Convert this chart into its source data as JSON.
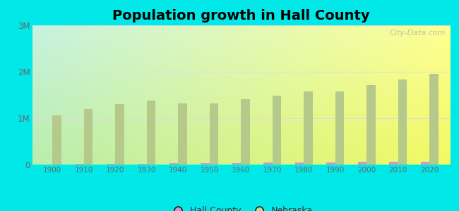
{
  "title": "Population growth in Hall County",
  "title_fontsize": 14,
  "title_fontweight": "bold",
  "years": [
    1900,
    1910,
    1920,
    1930,
    1940,
    1950,
    1960,
    1970,
    1980,
    1990,
    2000,
    2010,
    2020
  ],
  "nebraska": [
    1066300,
    1192214,
    1296372,
    1377963,
    1315834,
    1325510,
    1411330,
    1483791,
    1569825,
    1578385,
    1711263,
    1826341,
    1961504
  ],
  "hall_county": [
    7564,
    11061,
    15752,
    22648,
    26495,
    29234,
    35757,
    42851,
    47690,
    48925,
    53534,
    61353,
    67515
  ],
  "nebraska_color": "#b5c98a",
  "hall_county_color": "#cc99cc",
  "outer_bg": "#00e8e8",
  "ylim": [
    0,
    3000000
  ],
  "yticks": [
    0,
    1000000,
    2000000,
    3000000
  ],
  "ytick_labels": [
    "0",
    "1M",
    "2M",
    "3M"
  ],
  "bar_width": 0.28,
  "watermark": "City-Data.com",
  "legend_labels": [
    "Hall County",
    "Nebraska"
  ],
  "legend_colors": [
    "#cc99cc",
    "#c8d898"
  ]
}
